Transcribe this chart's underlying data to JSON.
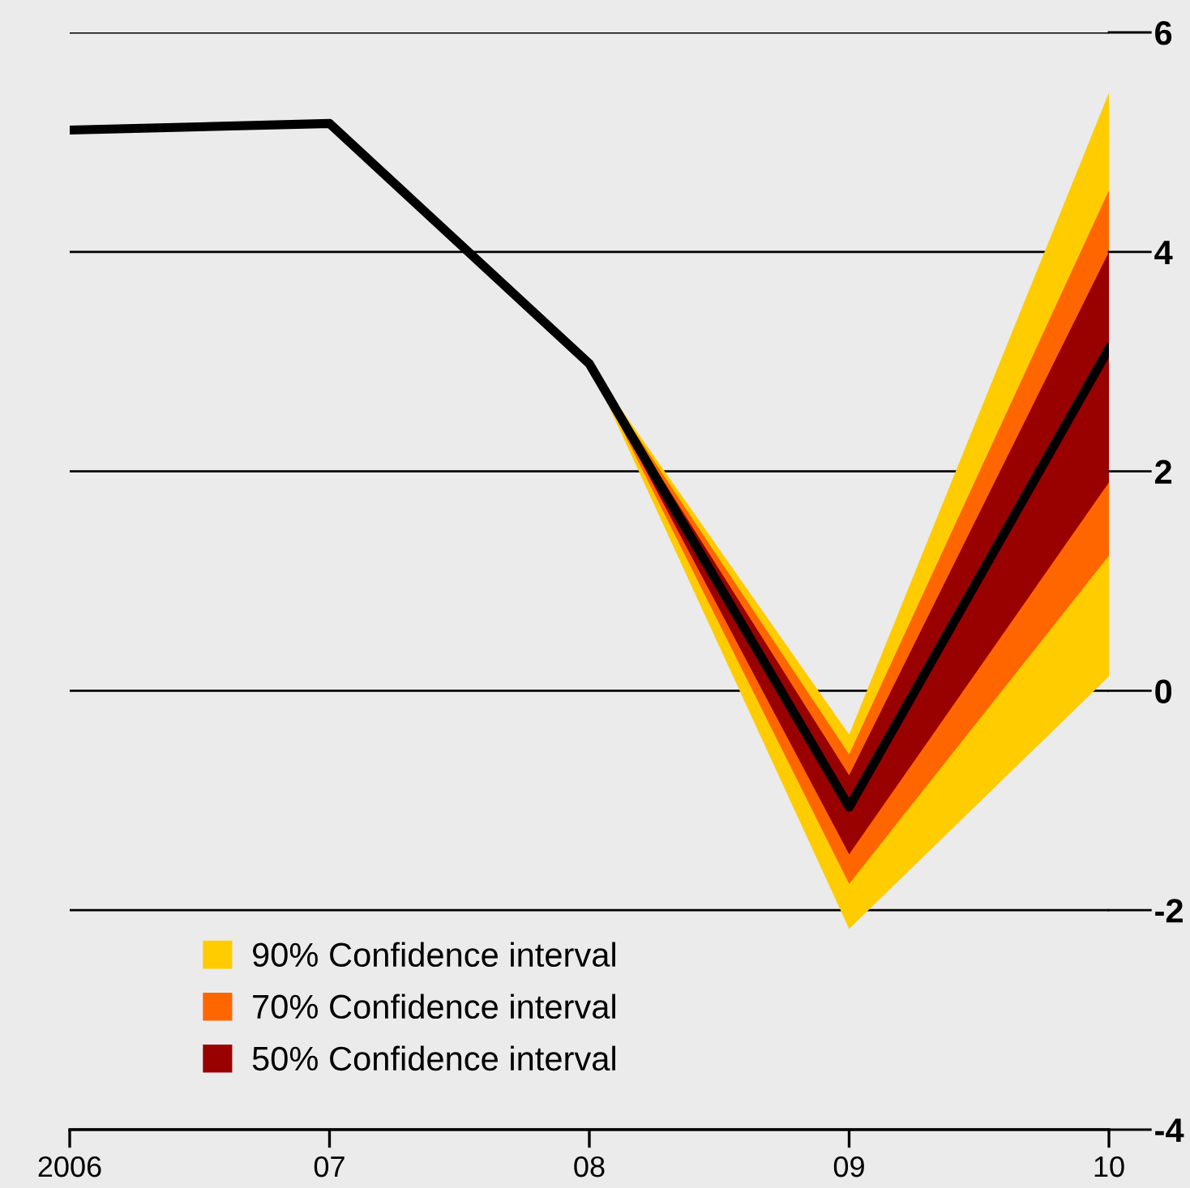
{
  "chart_data": {
    "type": "line",
    "x": [
      2006,
      2007,
      2008,
      2009,
      2010
    ],
    "series": [
      {
        "name": "90% Confidence interval",
        "type": "area",
        "color": "#ffcc00",
        "x": [
          2008,
          2009,
          2010
        ],
        "values": [
          null,
          null,
          null
        ],
        "lower": [
          2.98,
          -2.17,
          0.13
        ],
        "upper": [
          2.98,
          -0.4,
          5.45
        ]
      },
      {
        "name": "70% Confidence interval",
        "type": "area",
        "color": "#ff6600",
        "x": [
          2008,
          2009,
          2010
        ],
        "values": [
          null,
          null,
          null
        ],
        "lower": [
          2.98,
          -1.76,
          1.23
        ],
        "upper": [
          2.98,
          -0.58,
          4.56
        ]
      },
      {
        "name": "50% Confidence interval",
        "type": "area",
        "color": "#990000",
        "x": [
          2008,
          2009,
          2010
        ],
        "values": [
          null,
          null,
          null
        ],
        "lower": [
          2.98,
          -1.49,
          1.9
        ],
        "upper": [
          2.98,
          -0.77,
          4.0
        ]
      },
      {
        "type": "line",
        "color": "#000000",
        "values": [
          5.11,
          5.17,
          2.98,
          -1.06,
          3.12
        ]
      }
    ],
    "xlim": [
      2006,
      2010
    ],
    "xticks": [
      2006,
      {
        "value": 2007,
        "label": "07"
      },
      {
        "value": 2008,
        "label": "08"
      },
      {
        "value": 2009,
        "label": "09"
      },
      {
        "value": 2010,
        "label": "10"
      }
    ],
    "ylim": [
      -4,
      6
    ],
    "yticks": [
      -4,
      -2,
      0,
      2,
      4,
      6
    ],
    "grid": "y",
    "legend": "bottom left",
    "line_style": "solid"
  }
}
